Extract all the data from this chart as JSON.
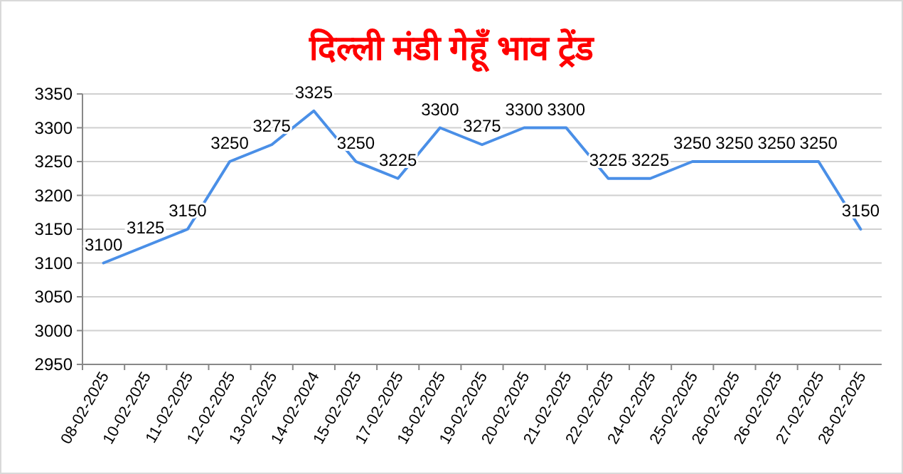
{
  "chart_data": {
    "type": "line",
    "title": "दिल्ली मंडी गेहूँ भाव ट्रेंड",
    "categories": [
      "08-02-2025",
      "10-02-2025",
      "11-02-2025",
      "12-02-2025",
      "13-02-2025",
      "14-02-2024",
      "15-02-2025",
      "17-02-2025",
      "18-02-2025",
      "19-02-2025",
      "20-02-2025",
      "21-02-2025",
      "22-02-2025",
      "24-02-2025",
      "25-02-2025",
      "26-02-2025",
      "26-02-2025",
      "27-02-2025",
      "28-02-2025"
    ],
    "series": [
      {
        "color": "#4a8fe7",
        "values": [
          3100,
          3125,
          3150,
          3250,
          3275,
          3325,
          3250,
          3225,
          3300,
          3275,
          3300,
          3300,
          3225,
          3225,
          3250,
          3250,
          3250,
          3250,
          3150
        ]
      }
    ],
    "ylim": [
      2950,
      3350
    ],
    "yticks": [
      2950,
      3000,
      3050,
      3100,
      3150,
      3200,
      3250,
      3300,
      3350
    ],
    "grid": "y",
    "data_labels": true,
    "marker": "none",
    "line_style": "solid"
  }
}
